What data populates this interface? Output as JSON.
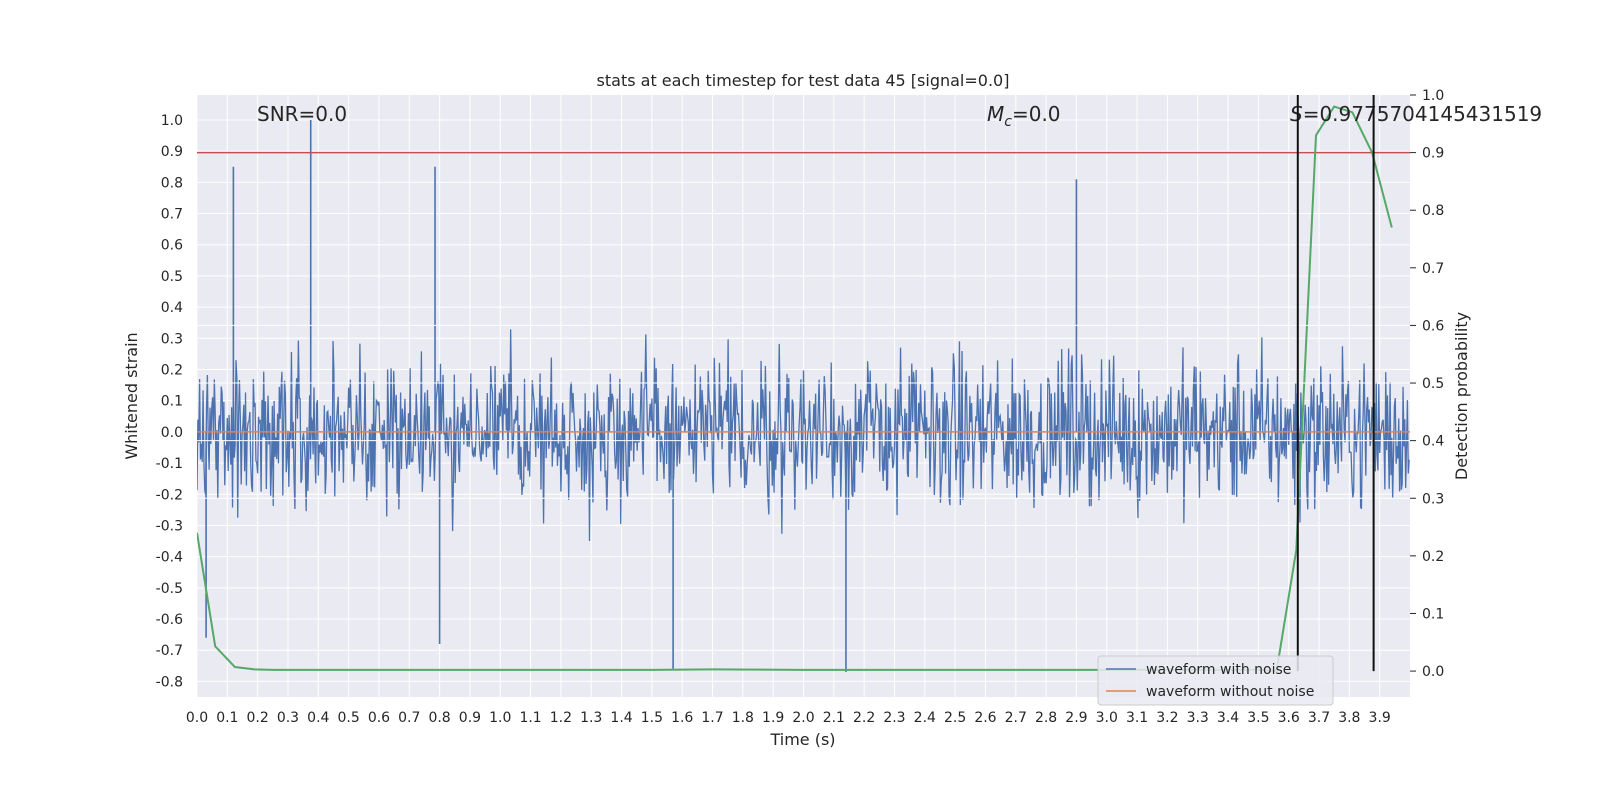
{
  "chart_data": {
    "type": "line",
    "title": "stats at each timestep for test data 45 [signal=0.0]",
    "xlabel": "Time (s)",
    "ylabel": "Whitened strain",
    "y2label": "Detection probability",
    "xlim": [
      0.0,
      4.0
    ],
    "ylim": [
      -0.85,
      1.08
    ],
    "y2lim": [
      -0.045,
      1.0
    ],
    "x_ticks": [
      "0.0",
      "0.1",
      "0.2",
      "0.3",
      "0.4",
      "0.5",
      "0.6",
      "0.7",
      "0.8",
      "0.9",
      "1.0",
      "1.1",
      "1.2",
      "1.3",
      "1.4",
      "1.5",
      "1.6",
      "1.7",
      "1.8",
      "1.9",
      "2.0",
      "2.1",
      "2.2",
      "2.3",
      "2.4",
      "2.5",
      "2.6",
      "2.7",
      "2.8",
      "2.9",
      "3.0",
      "3.1",
      "3.2",
      "3.3",
      "3.4",
      "3.5",
      "3.6",
      "3.7",
      "3.8",
      "3.9"
    ],
    "y_ticks": [
      "1.0",
      "0.9",
      "0.8",
      "0.7",
      "0.6",
      "0.5",
      "0.4",
      "0.3",
      "0.2",
      "0.1",
      "0.0",
      "-0.1",
      "-0.2",
      "-0.3",
      "-0.4",
      "-0.5",
      "-0.6",
      "-0.7",
      "-0.8"
    ],
    "y2_ticks": [
      "1.0",
      "0.9",
      "0.8",
      "0.7",
      "0.6",
      "0.5",
      "0.4",
      "0.3",
      "0.2",
      "0.1",
      "0.0"
    ],
    "grid": true,
    "legend_position": "lower-right",
    "annotations": {
      "snr": "SNR=0.0",
      "mc": "=0.0",
      "mc_symbol": "M",
      "mc_subscript": "c",
      "s_symbol": "S",
      "s": "=0.9775704145431519"
    },
    "threshold": {
      "value": 0.9,
      "axis": "y2",
      "color": "#c44e52"
    },
    "vlines": [
      3.63,
      3.88
    ],
    "series": [
      {
        "name": "waveform with noise",
        "color": "#4c72b0",
        "axis": "y",
        "style": "dense noise, range approx -0.8 to 1.0",
        "peaks": [
          [
            0.12,
            0.85
          ],
          [
            0.375,
            1.0
          ],
          [
            0.785,
            0.85
          ],
          [
            2.9,
            0.81
          ],
          [
            1.57,
            -0.76
          ],
          [
            2.14,
            -0.77
          ],
          [
            0.03,
            -0.66
          ],
          [
            0.8,
            -0.68
          ]
        ]
      },
      {
        "name": "waveform without noise",
        "color": "#dd8452",
        "axis": "y",
        "x": [
          0.0,
          4.0
        ],
        "values": [
          0.0,
          0.0
        ]
      },
      {
        "name": "detection probability",
        "color": "#55a868",
        "axis": "y2",
        "x": [
          0.0,
          0.06,
          0.125,
          0.19,
          0.25,
          0.5,
          1.0,
          1.5,
          1.7,
          2.0,
          2.5,
          3.0,
          3.3,
          3.5,
          3.56,
          3.625,
          3.69,
          3.75,
          3.81,
          3.875,
          3.94
        ],
        "values": [
          0.24,
          0.043,
          0.007,
          0.003,
          0.002,
          0.002,
          0.002,
          0.002,
          0.003,
          0.002,
          0.002,
          0.002,
          0.002,
          0.002,
          0.0,
          0.21,
          0.93,
          0.98,
          0.97,
          0.9,
          0.77
        ]
      }
    ]
  }
}
